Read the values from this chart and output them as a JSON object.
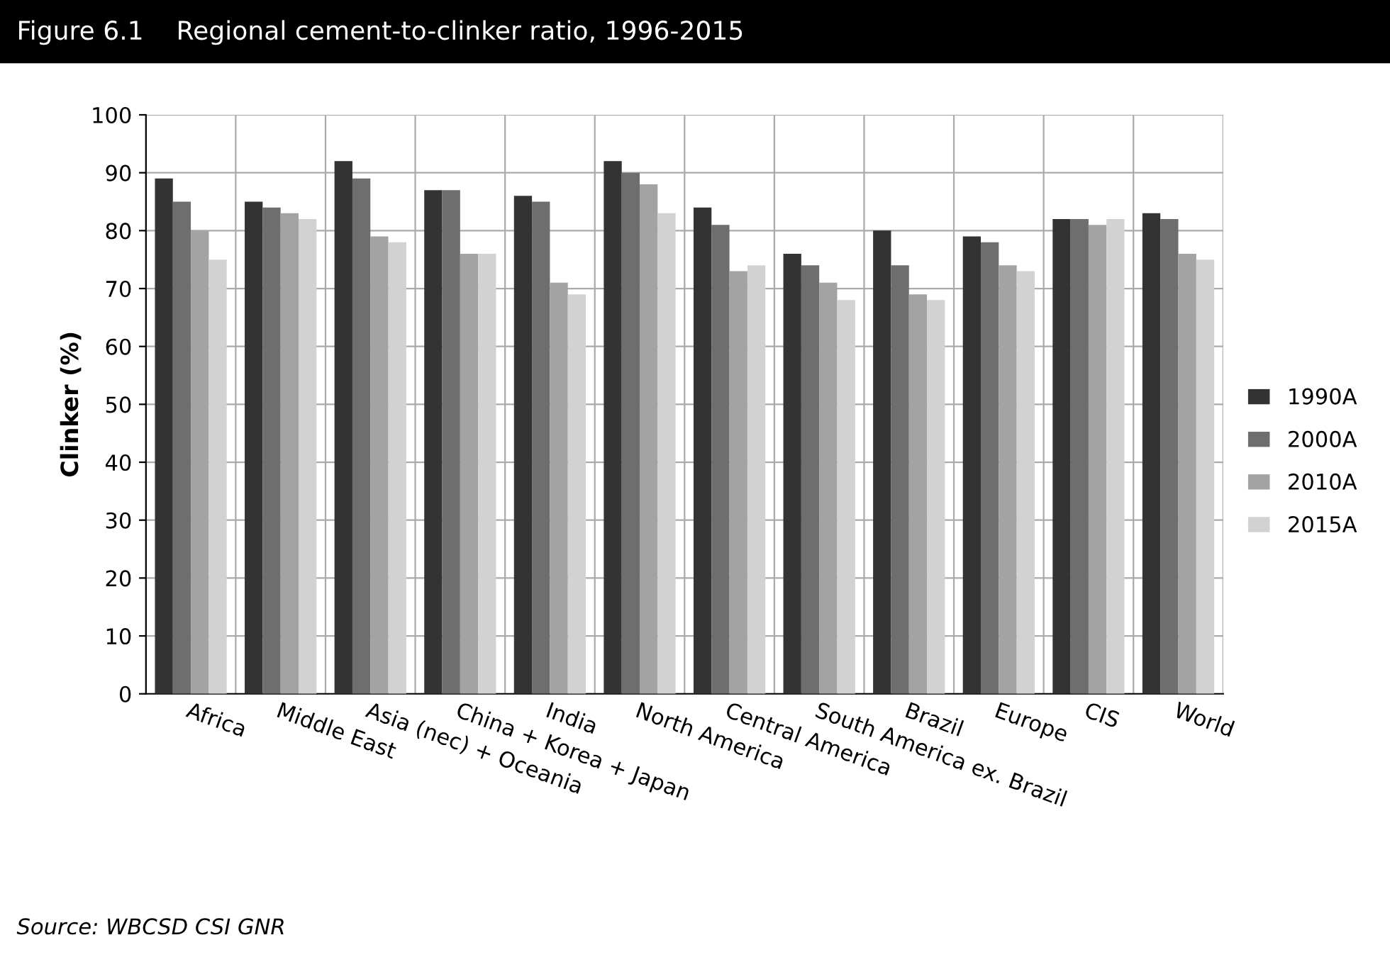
{
  "chart_data": {
    "type": "bar",
    "title": "Figure 6.1    Regional cement-to-clinker ratio, 1996-2015",
    "ylabel": "Clinker (%)",
    "categories": [
      "Africa",
      "Middle East",
      "Asia (nec) + Oceania",
      "China + Korea + Japan",
      "India",
      "North America",
      "Central America",
      "South America ex. Brazil",
      "Brazil",
      "Europe",
      "CIS",
      "World"
    ],
    "series": [
      {
        "name": "1990A",
        "color": "#333333",
        "values": [
          89,
          85,
          92,
          87,
          86,
          92,
          84,
          76,
          80,
          79,
          82,
          83
        ]
      },
      {
        "name": "2000A",
        "color": "#6e6e6e",
        "values": [
          85,
          84,
          89,
          87,
          85,
          90,
          81,
          74,
          74,
          78,
          82,
          82
        ]
      },
      {
        "name": "2010A",
        "color": "#a3a3a3",
        "values": [
          80,
          83,
          79,
          76,
          71,
          88,
          73,
          71,
          69,
          74,
          81,
          76
        ]
      },
      {
        "name": "2015A",
        "color": "#d2d2d2",
        "values": [
          75,
          82,
          78,
          76,
          69,
          83,
          74,
          68,
          68,
          73,
          82,
          75
        ]
      }
    ],
    "ylim": [
      0,
      100
    ],
    "yticks": [
      0,
      10,
      20,
      30,
      40,
      50,
      60,
      70,
      80,
      90,
      100
    ],
    "grid": true,
    "legend": "right",
    "annotations": [
      "Source: WBCSD CSI GNR"
    ]
  }
}
